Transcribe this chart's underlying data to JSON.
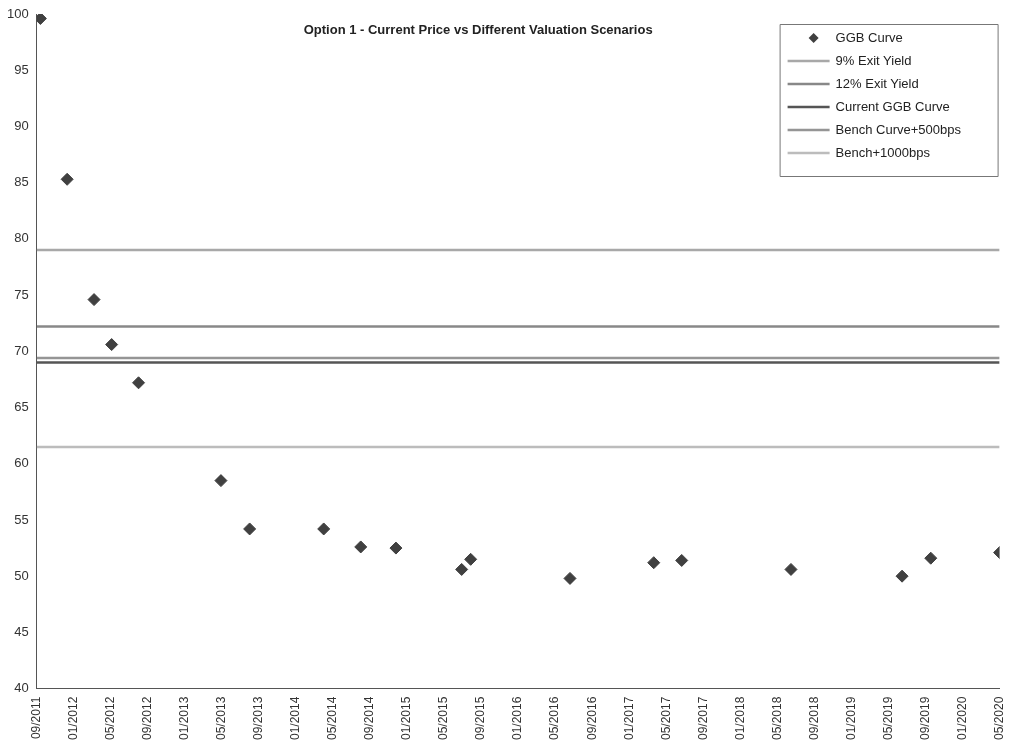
{
  "chart_data": {
    "type": "scatter",
    "title": "Option 1 - Current Price vs Different Valuation Scenarios",
    "xlim": [
      "2011-09",
      "2020-05"
    ],
    "xticks": [
      {
        "value": "2011-09",
        "label": "09/2011"
      },
      {
        "value": "2012-01",
        "label": "01/2012"
      },
      {
        "value": "2012-05",
        "label": "05/2012"
      },
      {
        "value": "2012-09",
        "label": "09/2012"
      },
      {
        "value": "2013-01",
        "label": "01/2013"
      },
      {
        "value": "2013-05",
        "label": "05/2013"
      },
      {
        "value": "2013-09",
        "label": "09/2013"
      },
      {
        "value": "2014-01",
        "label": "01/2014"
      },
      {
        "value": "2014-05",
        "label": "05/2014"
      },
      {
        "value": "2014-09",
        "label": "09/2014"
      },
      {
        "value": "2015-01",
        "label": "01/2015"
      },
      {
        "value": "2015-05",
        "label": "05/2015"
      },
      {
        "value": "2015-09",
        "label": "09/2015"
      },
      {
        "value": "2016-01",
        "label": "01/2016"
      },
      {
        "value": "2016-05",
        "label": "05/2016"
      },
      {
        "value": "2016-09",
        "label": "09/2016"
      },
      {
        "value": "2017-01",
        "label": "01/2017"
      },
      {
        "value": "2017-05",
        "label": "05/2017"
      },
      {
        "value": "2017-09",
        "label": "09/2017"
      },
      {
        "value": "2018-01",
        "label": "01/2018"
      },
      {
        "value": "2018-05",
        "label": "05/2018"
      },
      {
        "value": "2018-09",
        "label": "09/2018"
      },
      {
        "value": "2019-01",
        "label": "01/2019"
      },
      {
        "value": "2019-05",
        "label": "05/2019"
      },
      {
        "value": "2019-09",
        "label": "09/2019"
      },
      {
        "value": "2020-01",
        "label": "01/2020"
      },
      {
        "value": "2020-05",
        "label": "05/2020"
      }
    ],
    "ylim": [
      40,
      100
    ],
    "yticks": [
      40,
      45,
      50,
      55,
      60,
      65,
      70,
      75,
      80,
      85,
      90,
      95,
      100
    ],
    "grid": false,
    "legend": "top right",
    "series": [
      {
        "name": "GGB Curve",
        "marker": "diamond",
        "color": "#404040",
        "x": [
          "2011-09-13",
          "2011-12-10",
          "2012-03-07",
          "2012-05-04",
          "2012-08-01",
          "2013-04-28",
          "2013-08-01",
          "2014-04-01",
          "2014-08-01",
          "2014-11-25",
          "2015-06-28",
          "2015-07-28",
          "2016-06-19",
          "2017-03-21",
          "2017-06-21",
          "2018-06-15",
          "2019-06-15",
          "2019-09-18",
          "2020-05-01"
        ],
        "values": [
          99.6,
          85.3,
          74.6,
          70.6,
          67.2,
          58.5,
          54.2,
          54.2,
          52.6,
          52.5,
          50.6,
          51.5,
          49.8,
          51.2,
          51.4,
          50.6,
          50.0,
          51.6,
          52.1
        ]
      },
      {
        "name": "9% Exit Yield",
        "type": "line",
        "marker": "none",
        "color": "#a8a8a8",
        "x": [
          "2011-09",
          "2020-05"
        ],
        "values": [
          79.0,
          79.0
        ]
      },
      {
        "name": "12% Exit Yield",
        "type": "line",
        "marker": "none",
        "color": "#888888",
        "x": [
          "2011-09",
          "2020-05"
        ],
        "values": [
          72.2,
          72.2
        ]
      },
      {
        "name": "Current GGB Curve",
        "type": "line",
        "marker": "none",
        "color": "#555555",
        "x": [
          "2011-09",
          "2020-05"
        ],
        "values": [
          69.0,
          69.0
        ]
      },
      {
        "name": "Bench Curve+500bps",
        "type": "line",
        "marker": "none",
        "color": "#959595",
        "x": [
          "2011-09",
          "2020-05"
        ],
        "values": [
          69.4,
          69.4
        ]
      },
      {
        "name": "Bench+1000bps",
        "type": "line",
        "marker": "none",
        "color": "#bcbcbc",
        "x": [
          "2011-09",
          "2020-05"
        ],
        "values": [
          61.5,
          61.5
        ]
      }
    ]
  }
}
